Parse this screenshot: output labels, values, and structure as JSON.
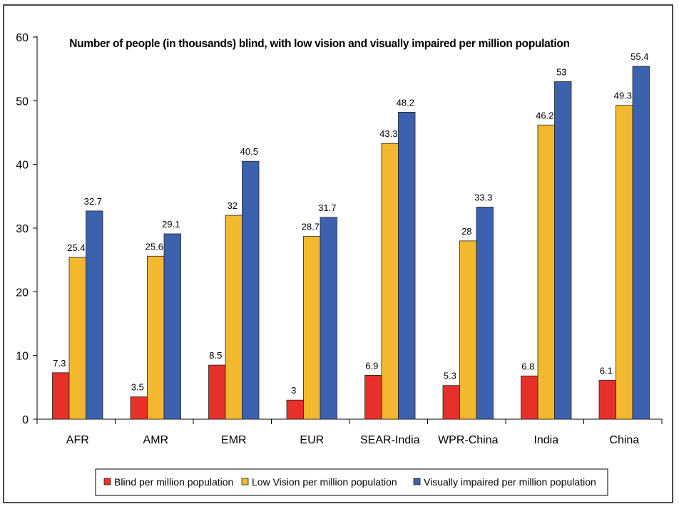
{
  "chart_data": {
    "type": "bar",
    "title": "Number of people (in thousands)  blind, with low vision and visually impaired per million population",
    "xlabel": "",
    "ylabel": "",
    "ylim": [
      0,
      60
    ],
    "yticks": [
      0,
      10,
      20,
      30,
      40,
      50,
      60
    ],
    "grid": false,
    "legend_position": "bottom",
    "categories": [
      "AFR",
      "AMR",
      "EMR",
      "EUR",
      "SEAR-India",
      "WPR-China",
      "India",
      "China"
    ],
    "series": [
      {
        "name": "Blind per million population",
        "color": "#e8302a",
        "values": [
          7.3,
          3.5,
          8.5,
          3,
          6.9,
          5.3,
          6.8,
          6.1
        ],
        "labels": [
          "7.3",
          "3.5",
          "8.5",
          "3",
          "6.9",
          "5.3",
          "6.8",
          "6.1"
        ]
      },
      {
        "name": "Low Vision per million population",
        "color": "#f3b92e",
        "values": [
          25.4,
          25.6,
          32,
          28.7,
          43.3,
          28,
          46.2,
          49.3
        ],
        "labels": [
          "25.4",
          "25.6",
          "32",
          "28.7",
          "43.3",
          "28",
          "46.2",
          "49.3"
        ]
      },
      {
        "name": "Visually impaired per million population",
        "color": "#3d62ad",
        "values": [
          32.7,
          29.1,
          40.5,
          31.7,
          48.2,
          33.3,
          53,
          55.4
        ],
        "labels": [
          "32.7",
          "29.1",
          "40.5",
          "31.7",
          "48.2",
          "33.3",
          "53",
          "55.4"
        ]
      }
    ]
  }
}
